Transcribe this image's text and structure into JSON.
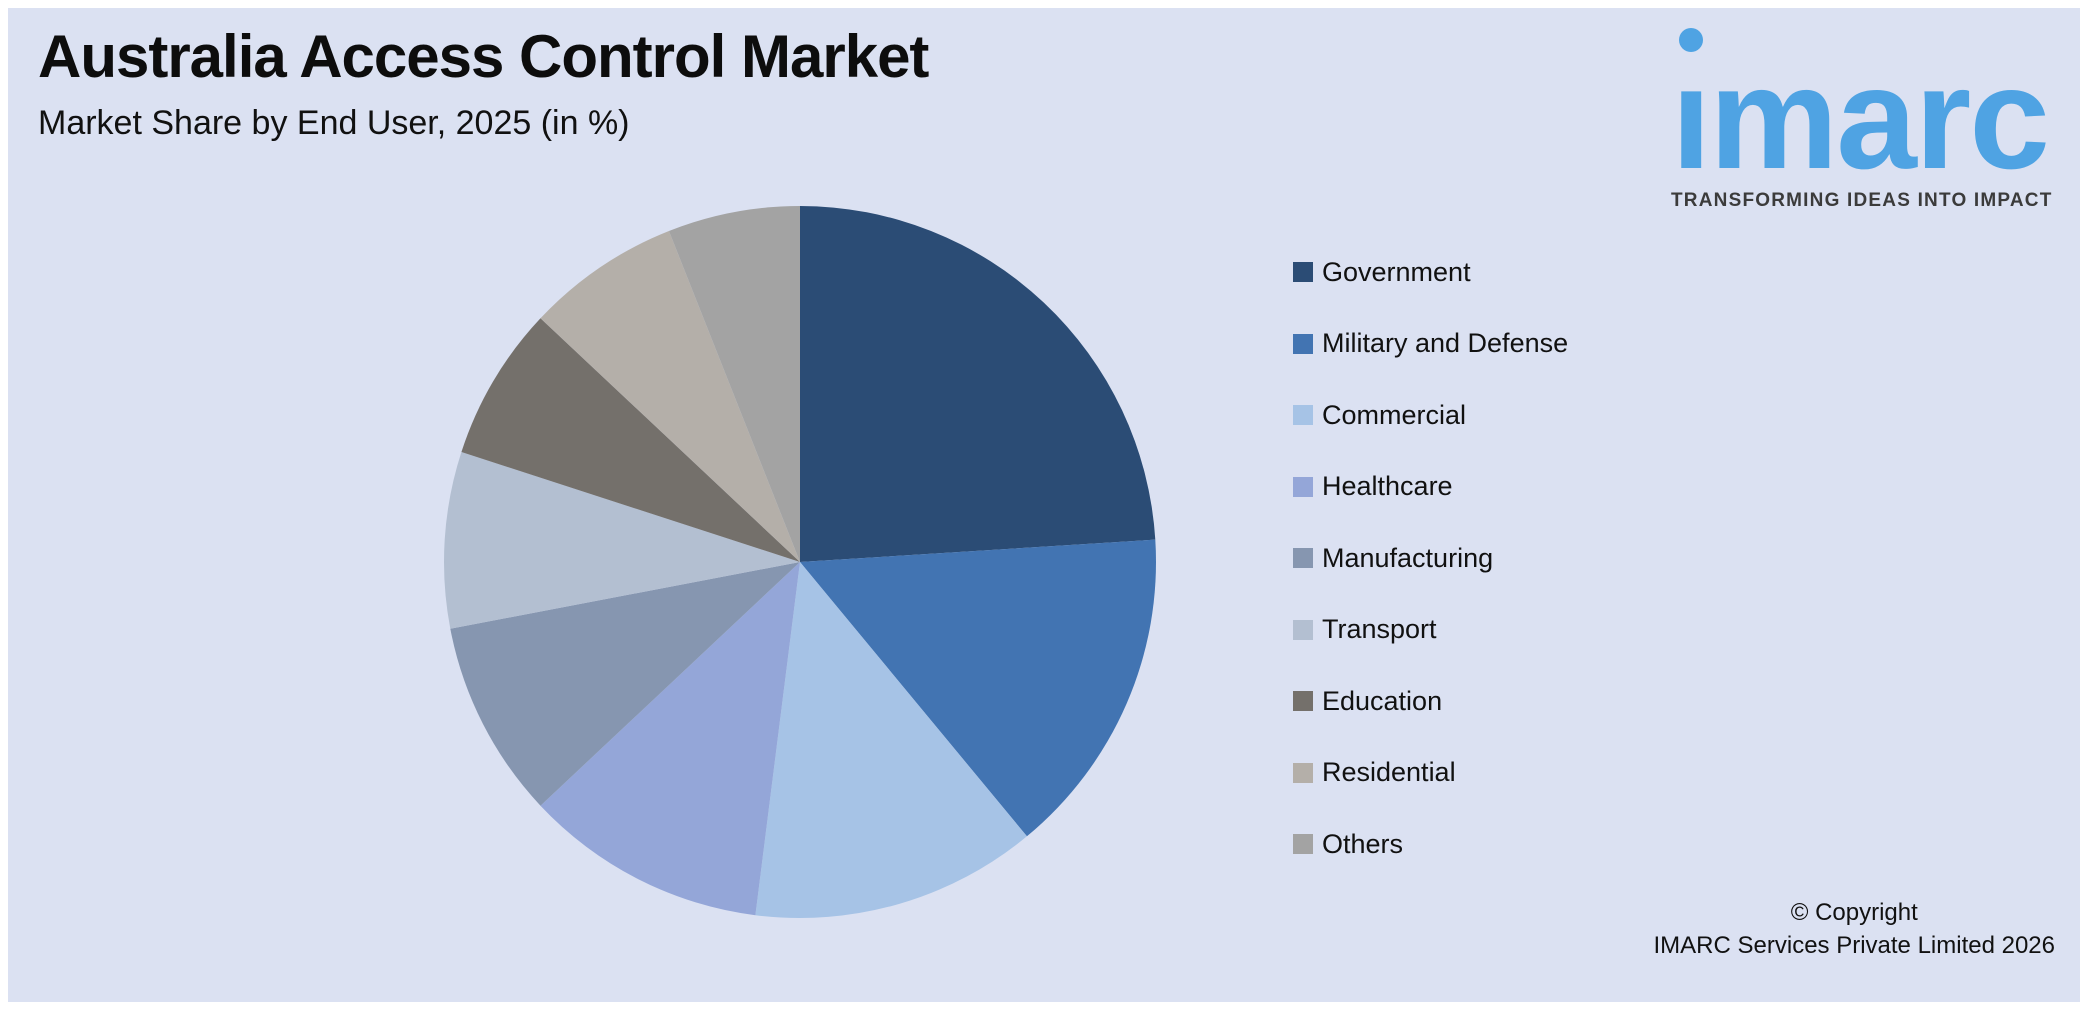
{
  "header": {
    "title": "Australia Access Control Market",
    "subtitle": "Market Share by End User, 2025 (in %)"
  },
  "logo": {
    "wordmark": "imarc",
    "tagline": "TRANSFORMING IDEAS INTO IMPACT",
    "brand_color": "#4fa3e3",
    "tagline_color": "#3b3b3b"
  },
  "chart_data": {
    "type": "pie",
    "title": "Australia Access Control Market",
    "subtitle": "Market Share by End User, 2025 (in %)",
    "unit": "%",
    "categories": [
      "Government",
      "Military and Defense",
      "Commercial",
      "Healthcare",
      "Manufacturing",
      "Transport",
      "Education",
      "Residential",
      "Others"
    ],
    "values": [
      24,
      15,
      13,
      11,
      9,
      8,
      7,
      7,
      6
    ],
    "colors": [
      "#2B4C75",
      "#4274B2",
      "#A6C3E6",
      "#94A6D8",
      "#8696B0",
      "#B3BFD1",
      "#74706B",
      "#B4AFA9",
      "#A3A3A3"
    ],
    "start_angle_deg": 0,
    "direction": "clockwise",
    "legend_position": "right",
    "data_labels": false,
    "background_color": "#dbe1f2"
  },
  "footer": {
    "copyright_line1": "© Copyright",
    "copyright_line2": "IMARC Services Private Limited 2026"
  }
}
